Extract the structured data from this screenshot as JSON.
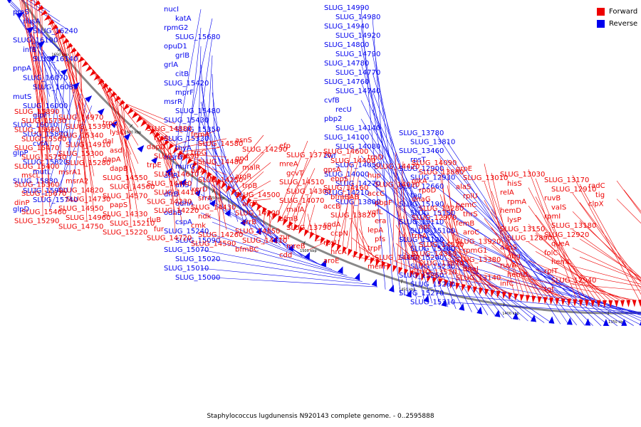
{
  "caption": "Staphylococcus lugdunensis N920143 complete genome. - 0..2595888",
  "legend": {
    "items": [
      {
        "label": "Forward",
        "color": "#ee0000"
      },
      {
        "label": "Reverse",
        "color": "#0000ee"
      }
    ]
  },
  "colors": {
    "forward": "#ee0000",
    "reverse": "#0000ee",
    "backbone": "#888888"
  },
  "backbone": {
    "ticks": [
      "1650 kbp",
      "1600 kbp",
      "1550 kbp",
      "1500 kbp",
      "1450 kbp",
      "1400 kbp",
      "1350 kbp"
    ]
  },
  "reverse_labels": [
    "proS",
    "nusA",
    "SLUG_16240",
    "SLUG_16190",
    "infB",
    "SLUG_16140",
    "pnpA",
    "SLUG_16070",
    "SLUG_16080",
    "mutS",
    "SLUG_16000",
    "glpF",
    "SLUG_16010",
    "SLUG_15870",
    "cvfA",
    "glpP",
    "SLUG_15820",
    "mutL",
    "SLUG_15830",
    "SLUG_15900",
    "SLUG_15740",
    "glpD",
    "SLUG_15790",
    "SLUG_15600",
    "SLUG_15570",
    "SLUG_15520",
    "glnR",
    "thrB",
    "SLUG_15530",
    "SLUG_15710",
    "SLUG_15540",
    "SLUG_15550",
    "SLUG_15580",
    "glnA",
    "nucI",
    "katA",
    "rpmG2",
    "SLUG_15680",
    "opuD1",
    "grlB",
    "grlA",
    "citB",
    "SLUG_15420",
    "mprF",
    "msrR",
    "SLUG_15480",
    "SLUG_15430",
    "SLUG_15350",
    "SLUG_15330",
    "thyA",
    "msrB",
    "murG",
    "arlR",
    "arlS",
    "dfrB",
    "odhA",
    "odhB",
    "cspA",
    "SLUG_15240",
    "SLUG_15090",
    "SLUG_15070",
    "SLUG_15020",
    "SLUG_15010",
    "SLUG_15000",
    "SLUG_14990",
    "SLUG_14980",
    "SLUG_14940",
    "SLUG_14920",
    "SLUG_14800",
    "SLUG_14790",
    "SLUG_14780",
    "SLUG_14770",
    "SLUG_14760",
    "SLUG_14740",
    "cvfB",
    "recU",
    "pbp2",
    "SLUG_14140",
    "SLUG_14100",
    "SLUG_14080",
    "zwf",
    "SLUG_14050",
    "SLUG_14000",
    "SLUG_14270",
    "SLUG_14210",
    "SLUG_13800",
    "SLUG_13780",
    "SLUG_13810",
    "SLUG_13460",
    "rpsT",
    "SLUG_12900",
    "SLUG_12930",
    "SLUG_12660",
    "tag",
    "SLUG_15190",
    "SLUG_15150",
    "SLUG_15110",
    "SLUG_15100",
    "SLUG_15120",
    "SLUG_15180",
    "SLUG_15200",
    "SLUG_15230",
    "SLUG_15250",
    "SLUG_15260",
    "SLUG_15270",
    "SLUG_15310"
  ],
  "forward_labels": [
    "SLUG_15890",
    "SLUG_15730",
    "SLUG_15660",
    "SLUG_15560",
    "SLUG_15470",
    "SLUG_15750",
    "SLUG_15400",
    "mscL",
    "SLUG_15360",
    "SLUG_15670",
    "dinP",
    "SLUG_15460",
    "SLUG_15290",
    "SLUG_14970",
    "SLUG_15390",
    "SLUG_15340",
    "SLUG_14910",
    "SLUG_15300",
    "SLUG_15280",
    "msrA1",
    "msrA2",
    "SLUG_14820",
    "SLUG_14730",
    "SLUG_14950",
    "SLUG_14960",
    "SLUG_14750",
    "trpC",
    "lysC",
    "dal",
    "asd",
    "dapA",
    "dapB",
    "SLUG_14550",
    "SLUG_14560",
    "SLUG_14570",
    "papS",
    "SLUG_14330",
    "SLUG_15210",
    "SLUG_15220",
    "SLUG_14880",
    "lysA",
    "dapD",
    "SLUG_14690",
    "trpE",
    "SLUG_14610",
    "SLUG_14440",
    "SLUG_14410",
    "SLUG_14230",
    "SLUG_14220",
    "rluB",
    "fur",
    "SLUG_14720",
    "femA",
    "SLUG_14580",
    "trpG",
    "SLUG_14480",
    "birA",
    "SLUG_14250",
    "xerD",
    "srrA",
    "SLUG_14430",
    "ndk",
    "cmk",
    "SLUG_14260",
    "SLUG_14590",
    "asnS",
    "SLUG_14290",
    "gnd",
    "malR",
    "argR",
    "trpB",
    "SLUG_14500",
    "aroA",
    "SLUG_14200",
    "srrB",
    "SLUG_14150",
    "SLUG_14110",
    "bfmBC",
    "efp",
    "SLUG_13770",
    "mreA",
    "gcvT",
    "SLUG_14510",
    "SLUG_14300",
    "SLUG_14070",
    "malA",
    "bfmB",
    "SLUG_13790",
    "zur",
    "mreB",
    "cdd",
    "SLUG_14600",
    "SLUG_14400",
    "gpsA",
    "ebpS",
    "SLUG_14160",
    "bfmBAB",
    "accB",
    "SLUG_13820",
    "sodA",
    "ccpN",
    "rpsU",
    "hrcA",
    "aroE",
    "trpD",
    "SLUG_14420",
    "hup",
    "SLUG_14010",
    "accC",
    "pbpF",
    "yqfL",
    "era",
    "lepA",
    "pfs",
    "trpF",
    "SLUG_14450",
    "menH",
    "SLUG_14090",
    "SLUG_13860",
    "glkA",
    "rpoD",
    "dnaG",
    "SLUG_13280",
    "SLUG_12970",
    "apt",
    "trpA",
    "SLUG_14520",
    "SLUG_14350",
    "SLUG_13870",
    "SLUG_13510",
    "grpE",
    "SLUG_13010",
    "alaS",
    "rplU",
    "hemC",
    "thrS",
    "femB",
    "aroC",
    "SLUG_13920",
    "rpmG1",
    "SLUG_13380",
    "dnaJ",
    "SLUG_13140",
    "SLUG_13030",
    "hisS",
    "relA",
    "rpmA",
    "hemD",
    "lysP",
    "SLUG_13150",
    "SLUG_12890",
    "aspS",
    "obg",
    "ruvA",
    "hemB",
    "infC",
    "SLUG_13170",
    "SLUG_12910",
    "ruvB",
    "valS",
    "rpmI",
    "SLUG_13180",
    "SLUG_12920",
    "queA",
    "folC",
    "hemL",
    "rplT",
    "SLUG_12940",
    "tgt",
    "radC",
    "tig",
    "clpX"
  ]
}
